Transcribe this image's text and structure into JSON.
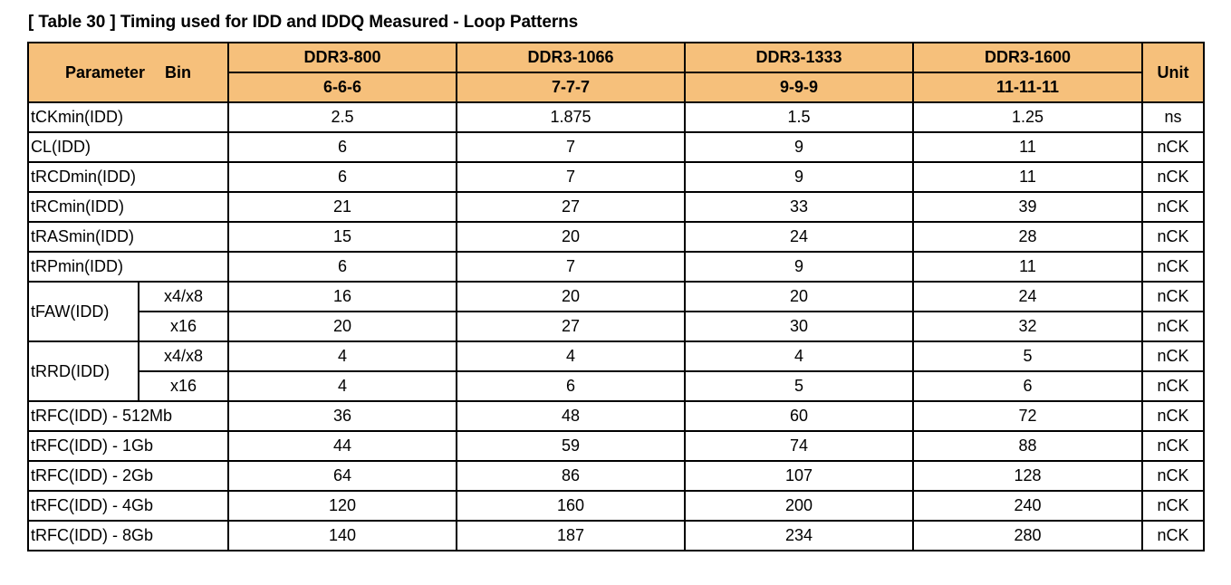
{
  "caption": "[ Table 30 ] Timing used for IDD and IDDQ Measured - Loop Patterns",
  "header": {
    "parameter_label": "Parameter",
    "bin_label": "Bin",
    "unit_label": "Unit",
    "speed_bins": [
      {
        "name": "DDR3-800",
        "timing": "6-6-6"
      },
      {
        "name": "DDR3-1066",
        "timing": "7-7-7"
      },
      {
        "name": "DDR3-1333",
        "timing": "9-9-9"
      },
      {
        "name": "DDR3-1600",
        "timing": "11-11-11"
      }
    ]
  },
  "rows": [
    {
      "param": "tCKmin(IDD)",
      "values": [
        "2.5",
        "1.875",
        "1.5",
        "1.25"
      ],
      "unit": "ns"
    },
    {
      "param": "CL(IDD)",
      "values": [
        "6",
        "7",
        "9",
        "11"
      ],
      "unit": "nCK"
    },
    {
      "param": "tRCDmin(IDD)",
      "values": [
        "6",
        "7",
        "9",
        "11"
      ],
      "unit": "nCK"
    },
    {
      "param": "tRCmin(IDD)",
      "values": [
        "21",
        "27",
        "33",
        "39"
      ],
      "unit": "nCK"
    },
    {
      "param": "tRASmin(IDD)",
      "values": [
        "15",
        "20",
        "24",
        "28"
      ],
      "unit": "nCK"
    },
    {
      "param": "tRPmin(IDD)",
      "values": [
        "6",
        "7",
        "9",
        "11"
      ],
      "unit": "nCK"
    }
  ],
  "grouped_rows": [
    {
      "param": "tFAW(IDD)",
      "subrows": [
        {
          "sub": "x4/x8",
          "values": [
            "16",
            "20",
            "20",
            "24"
          ],
          "unit": "nCK"
        },
        {
          "sub": "x16",
          "values": [
            "20",
            "27",
            "30",
            "32"
          ],
          "unit": "nCK"
        }
      ]
    },
    {
      "param": "tRRD(IDD)",
      "subrows": [
        {
          "sub": "x4/x8",
          "values": [
            "4",
            "4",
            "4",
            "5"
          ],
          "unit": "nCK"
        },
        {
          "sub": "x16",
          "values": [
            "4",
            "6",
            "5",
            "6"
          ],
          "unit": "nCK"
        }
      ]
    }
  ],
  "trfc_rows": [
    {
      "param": "tRFC(IDD) - 512Mb",
      "values": [
        "36",
        "48",
        "60",
        "72"
      ],
      "unit": "nCK"
    },
    {
      "param": "tRFC(IDD) - 1Gb",
      "values": [
        "44",
        "59",
        "74",
        "88"
      ],
      "unit": "nCK"
    },
    {
      "param": "tRFC(IDD) - 2Gb",
      "values": [
        "64",
        "86",
        "107",
        "128"
      ],
      "unit": "nCK"
    },
    {
      "param": "tRFC(IDD) - 4Gb",
      "values": [
        "120",
        "160",
        "200",
        "240"
      ],
      "unit": "nCK"
    },
    {
      "param": "tRFC(IDD) - 8Gb",
      "values": [
        "140",
        "187",
        "234",
        "280"
      ],
      "unit": "nCK"
    }
  ],
  "colors": {
    "header_background": "#f6c07b",
    "border": "#000000"
  }
}
